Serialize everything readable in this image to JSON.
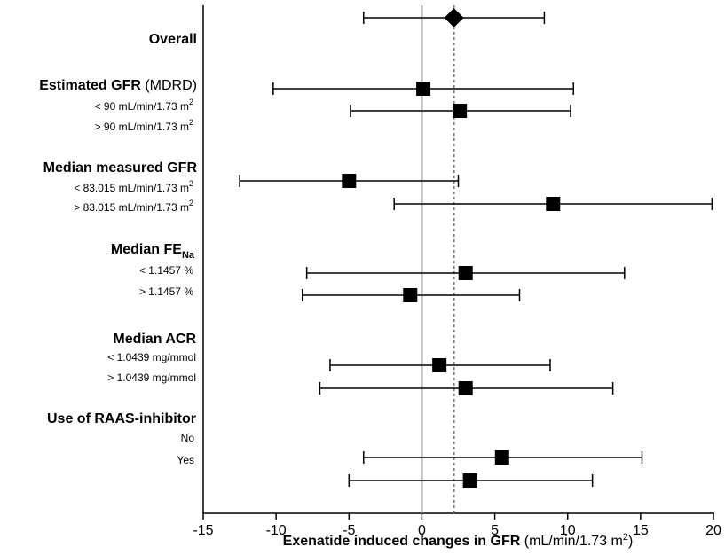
{
  "chart_data": {
    "type": "forest",
    "xlabel": "Exenatide induced changes in GFR",
    "xlabel_unit": "(mL/min/1.73 m",
    "xlabel_unit_sup": "2",
    "xlabel_unit_end": ")",
    "xlim": [
      -15,
      20
    ],
    "xticks": [
      "-15",
      "-10",
      "-5",
      "0",
      "5",
      "10",
      "15",
      "20"
    ],
    "reference_line": 0,
    "overall_line": 2.2,
    "groups": [
      {
        "label": "Overall",
        "rows": [
          {
            "label": "",
            "estimate": 2.2,
            "lower": -4.0,
            "upper": 8.4,
            "marker": "diamond"
          }
        ]
      },
      {
        "label": "Estimated GFR",
        "label_suffix": "(MDRD)",
        "rows": [
          {
            "label": "< 90 mL/min/1.73 m",
            "sup": "2",
            "estimate": 0.1,
            "lower": -10.2,
            "upper": 10.4,
            "marker": "square"
          },
          {
            "label": "> 90 mL/min/1.73 m",
            "sup": "2",
            "estimate": 2.6,
            "lower": -4.9,
            "upper": 10.2,
            "marker": "square"
          }
        ]
      },
      {
        "label": "Median measured GFR",
        "rows": [
          {
            "label": "< 83.015 mL/min/1.73 m",
            "sup": "2",
            "estimate": -5.0,
            "lower": -12.5,
            "upper": 2.5,
            "marker": "square"
          },
          {
            "label": "> 83.015 mL/min/1.73 m",
            "sup": "2",
            "estimate": 9.0,
            "lower": -1.9,
            "upper": 19.9,
            "marker": "square"
          }
        ]
      },
      {
        "label": "Median FE",
        "label_sub": "Na",
        "rows": [
          {
            "label": "< 1.1457 %",
            "estimate": 3.0,
            "lower": -7.9,
            "upper": 13.9,
            "marker": "square"
          },
          {
            "label": "> 1.1457 %",
            "estimate": -0.8,
            "lower": -8.2,
            "upper": 6.7,
            "marker": "square"
          }
        ]
      },
      {
        "label": "Median ACR",
        "rows": [
          {
            "label": "< 1.0439 mg/mmol",
            "estimate": 1.2,
            "lower": -6.3,
            "upper": 8.8,
            "marker": "square"
          },
          {
            "label": "> 1.0439 mg/mmol",
            "estimate": 3.0,
            "lower": -7.0,
            "upper": 13.1,
            "marker": "square"
          }
        ]
      },
      {
        "label": "Use of RAAS-inhibitor",
        "rows": [
          {
            "label": "No",
            "estimate": 5.5,
            "lower": -4.0,
            "upper": 15.1,
            "marker": "square"
          },
          {
            "label": "Yes",
            "estimate": 3.3,
            "lower": -5.0,
            "upper": 11.7,
            "marker": "square"
          }
        ]
      }
    ]
  }
}
